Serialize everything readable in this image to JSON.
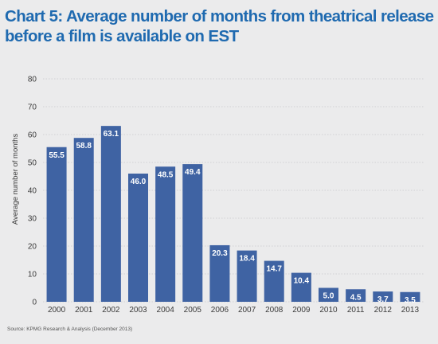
{
  "title_line1": "Chart 5: Average number of months from theatrical release",
  "title_line2": "before a film is available on EST",
  "source": "Source: KPMG Research & Analysis (December 2013)",
  "colors": {
    "bar": "#3f63a3",
    "title": "#1f6ab0",
    "background": "#ebebec",
    "grid": "#c9c9cc",
    "axis_text": "#3a3a3a",
    "bar_label": "#ffffff"
  },
  "chart_data": {
    "type": "bar",
    "title": "Chart 5: Average number of months from theatrical release before a film is available on EST",
    "xlabel": "",
    "ylabel": "Average number of months",
    "categories": [
      "2000",
      "2001",
      "2002",
      "2003",
      "2004",
      "2005",
      "2006",
      "2007",
      "2008",
      "2009",
      "2010",
      "2011",
      "2012",
      "2013"
    ],
    "values": [
      55.5,
      58.8,
      63.1,
      46.0,
      48.5,
      49.4,
      20.3,
      18.4,
      14.7,
      10.4,
      5.0,
      4.5,
      3.7,
      3.5
    ],
    "data_labels": [
      "55.5",
      "58.8",
      "63.1",
      "46.0",
      "48.5",
      "49.4",
      "20.3",
      "18.4",
      "14.7",
      "10.4",
      "5.0",
      "4.5",
      "3.7",
      "3.5"
    ],
    "ylim": [
      0,
      80
    ],
    "yticks": [
      0,
      10,
      20,
      30,
      40,
      50,
      60,
      70,
      80
    ],
    "grid": true,
    "legend": "none"
  }
}
